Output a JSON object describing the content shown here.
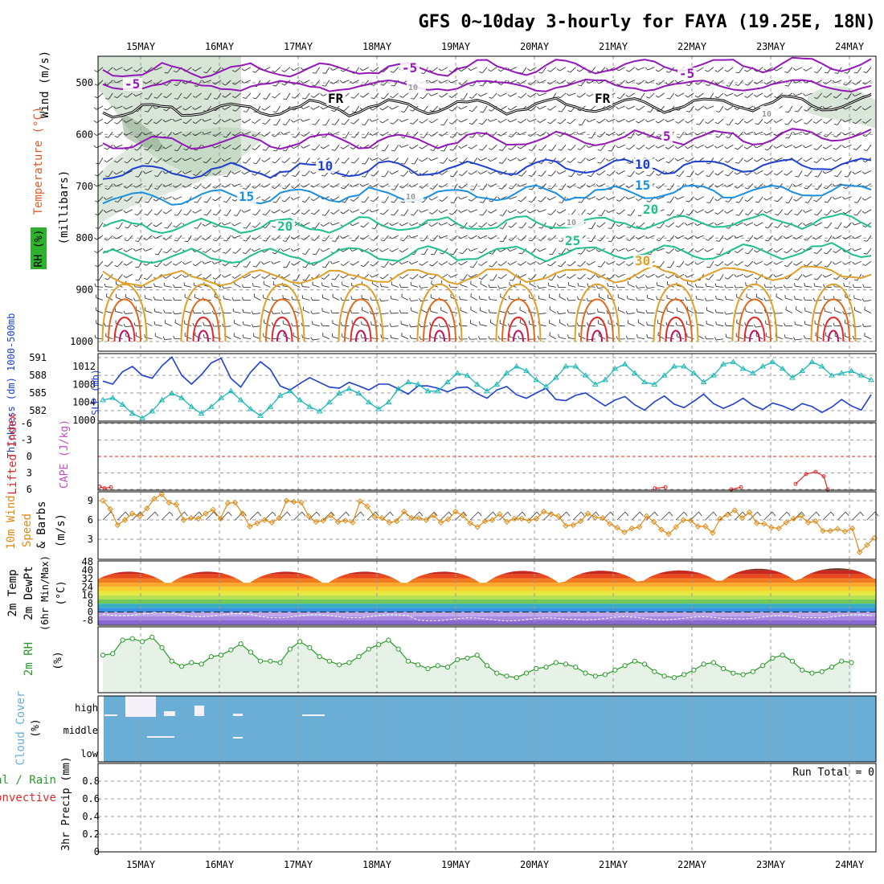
{
  "title": "GFS 0~10day 3-hourly for FAYA (19.25E, 18N)",
  "colors": {
    "purple": "#9418b8",
    "blue": "#1f3fcf",
    "lightblue": "#1a8fe0",
    "cyan": "#18b7b4",
    "teal": "#1fbf8f",
    "orange": "#e0a028",
    "darkorange": "#e06a1a",
    "red": "#e02a2a",
    "magenta": "#c0105a",
    "rhfill": "#b4cfb4",
    "windline": "#e08a14",
    "cloud": "#6aaed6",
    "rain": "#2a9a2a",
    "convective": "#e02a2a",
    "cape": "#c04fc0"
  },
  "chart_data": [
    {
      "panel": "upper-air",
      "type": "line",
      "title": "",
      "ylabel": [
        "Wind (m/s)",
        "Temperature (°C)",
        "RH (%)",
        "(millibars)"
      ],
      "x_dates": [
        "15MAY",
        "16MAY",
        "17MAY",
        "18MAY",
        "19MAY",
        "20MAY",
        "21MAY",
        "22MAY",
        "23MAY",
        "24MAY"
      ],
      "ylim": [
        1000,
        450
      ],
      "y_ticks": [
        500,
        600,
        700,
        800,
        900,
        1000
      ],
      "isotherm_labels": [
        "-5",
        "-5",
        "-5",
        "FR",
        "FR",
        "5",
        "10",
        "10",
        "15",
        "15",
        "20",
        "20",
        "25",
        "30",
        "10",
        "10",
        "10",
        "10"
      ],
      "isotherms_hPa": {
        "-5": 478,
        "FR": 553,
        "5": 617,
        "10": 672,
        "15": 722,
        "20": 780,
        "25": 838,
        "30": 880
      }
    },
    {
      "panel": "thickness-slp",
      "type": "line",
      "ylabel_left": "Thickness (dm) 1000-500mb",
      "ylabel_right": "SLP (mb)",
      "left_ticks": [
        "591",
        "588",
        "585",
        "582"
      ],
      "right_ticks": [
        "1012",
        "1008",
        "1004",
        "1000"
      ],
      "series": [
        {
          "name": "1000-500mb Thickness",
          "values": [
            587,
            586.5,
            588.6,
            589.5,
            588,
            587.5,
            589.6,
            591.1,
            588,
            586.5,
            588.1,
            590.1,
            590.9,
            587.5,
            586,
            588.5,
            590.3,
            589,
            586.2,
            585.5,
            586.6,
            587.6,
            586.8,
            586,
            585.8,
            586.8,
            586.2,
            585.5,
            586.5,
            586.5,
            585.7,
            584.8,
            586.2,
            586.2,
            585.8,
            585.2,
            585.9,
            586,
            584.9,
            584.1,
            585.5,
            586.1,
            584.7,
            584.1,
            585,
            585.8,
            583.9,
            583.7,
            584.6,
            585,
            583.9,
            582.8,
            583.8,
            584.4,
            583,
            582.1,
            583.5,
            584.5,
            583.1,
            582.5,
            583.6,
            584.8,
            583.2,
            582.4,
            583.1,
            584.1,
            582.9,
            582.2,
            583.3,
            582.8,
            582.1,
            583.2,
            582.7,
            581.7,
            582.6,
            583.9,
            582.8,
            582.1,
            584.7
          ]
        },
        {
          "name": "SLP",
          "values": [
            1004.5,
            1005,
            1003.5,
            1001.5,
            1000.5,
            1002,
            1004.5,
            1006,
            1005,
            1003,
            1001.5,
            1003,
            1005,
            1006.5,
            1004.5,
            1002.5,
            1001,
            1003,
            1005.5,
            1006.5,
            1004.5,
            1003,
            1002,
            1004,
            1006,
            1007,
            1006,
            1004,
            1002.5,
            1004,
            1007,
            1008.5,
            1008,
            1006.5,
            1006.5,
            1008.5,
            1010.5,
            1010,
            1008,
            1006.5,
            1008,
            1010.5,
            1012,
            1011,
            1009,
            1007.5,
            1009.5,
            1012,
            1012,
            1010,
            1008,
            1009,
            1011.5,
            1012.5,
            1010.5,
            1008.5,
            1008,
            1010,
            1012,
            1012,
            1010.5,
            1008.5,
            1010,
            1012.5,
            1013,
            1011.5,
            1010.5,
            1012,
            1013,
            1011.5,
            1009.5,
            1011,
            1013,
            1012,
            1010,
            1010.5,
            1011,
            1010,
            1009
          ]
        }
      ]
    },
    {
      "panel": "stability",
      "type": "line",
      "ylabel": [
        "Lifted Index",
        "CAPE (J/kg)"
      ],
      "y_ticks": [
        "-6",
        "-3",
        "0",
        "3",
        "6"
      ],
      "ylim": [
        6,
        -6
      ],
      "series": [
        {
          "name": "Lifted Index",
          "values": [
            5.5,
            3,
            2.8,
            4,
            6
          ]
        }
      ]
    },
    {
      "panel": "10m-wind",
      "type": "line",
      "ylabel": [
        "10m Wind",
        "Speed",
        "& Barbs",
        "(m/s)"
      ],
      "y_ticks": [
        "3",
        "6",
        "9"
      ],
      "ylim": [
        0,
        10.5
      ],
      "series": [
        {
          "name": "10m Wind Speed",
          "values": [
            9,
            7.7,
            5.2,
            6,
            7,
            6.6,
            7.8,
            9.3,
            10,
            8.7,
            8.4,
            6,
            6.3,
            6.2,
            7,
            7.6,
            6.2,
            8.6,
            8.7,
            7,
            5,
            5.5,
            6,
            5.6,
            6.3,
            9,
            8.8,
            8.7,
            6.6,
            5.7,
            5.9,
            6.7,
            5.7,
            5.9,
            5.6,
            8.9,
            8.1,
            6.5,
            6.3,
            5.6,
            5.8,
            7.3,
            6.3,
            6.3,
            6,
            6.7,
            5.6,
            6.1,
            7.3,
            6.7,
            5.5,
            4.9,
            5.8,
            6,
            6.9,
            5.7,
            6.2,
            6.2,
            5.9,
            6.2,
            7.3,
            6.9,
            6.6,
            5.1,
            5.2,
            5.8,
            7,
            6.4,
            6.3,
            5.4,
            4.8,
            4.1,
            4.7,
            4.9,
            6.6,
            5.7,
            4.5,
            3.8,
            4.9,
            6,
            5.9,
            5,
            5,
            4,
            6.2,
            6.8,
            7.5,
            6.3,
            7.2,
            5.5,
            5.4,
            4.8,
            4.7,
            5.6,
            6.2,
            6.6,
            5.6,
            5.8,
            4.3,
            4.3,
            4.6,
            4.2,
            4.7,
            1,
            2.1,
            3.2
          ]
        }
      ]
    },
    {
      "panel": "2m-temp",
      "type": "area",
      "ylabel": [
        "2m Temp",
        "2m DewPt",
        "(6hr Min/Max)",
        "(°C)"
      ],
      "y_ticks": [
        "48",
        "40",
        "32",
        "24",
        "16",
        "8",
        "0",
        "-8"
      ],
      "ylim": [
        -12,
        50
      ],
      "series": [
        {
          "name": "2m Temp Max",
          "values": [
            40,
            40,
            40,
            40,
            40,
            41,
            41,
            41,
            43,
            43
          ]
        },
        {
          "name": "2m Temp Min",
          "values": [
            28,
            28,
            28,
            28,
            28,
            28,
            29,
            30,
            30,
            32
          ]
        },
        {
          "name": "2m DewPt",
          "values": [
            -2,
            -3,
            -4,
            -4,
            -7,
            -7,
            -6,
            -6,
            -5,
            -4
          ]
        }
      ]
    },
    {
      "panel": "2m-rh",
      "type": "line",
      "ylabel": [
        "2m RH",
        "(%)"
      ],
      "series": [
        {
          "name": "2m RH",
          "values": [
            48,
            50,
            68,
            70,
            66,
            72,
            58,
            40,
            33,
            38,
            36,
            46,
            48,
            55,
            63,
            52,
            40,
            40,
            38,
            56,
            66,
            58,
            46,
            40,
            35,
            38,
            46,
            56,
            62,
            68,
            56,
            40,
            35,
            30,
            34,
            32,
            42,
            44,
            48,
            34,
            24,
            20,
            18,
            24,
            30,
            32,
            38,
            36,
            32,
            24,
            20,
            22,
            28,
            34,
            40,
            36,
            26,
            20,
            18,
            22,
            28,
            36,
            38,
            30,
            24,
            22,
            26,
            34,
            44,
            48,
            40,
            28,
            24,
            26,
            32,
            40,
            38
          ]
        }
      ]
    },
    {
      "panel": "cloud-cover",
      "type": "bar",
      "ylabel": [
        "Cloud Cover",
        "(%)"
      ],
      "y_ticks": [
        "high",
        "middle",
        "low"
      ]
    },
    {
      "panel": "precip",
      "type": "bar",
      "ylabel": [
        "3hr Precip (mm)",
        "Total / Rain",
        "Convective"
      ],
      "run_total_label": "Run Total = 0",
      "y_ticks": [
        "0",
        "0.2",
        "0.4",
        "0.6",
        "0.8"
      ],
      "ylim": [
        0,
        0.9
      ],
      "series": [
        {
          "name": "Total / Rain",
          "values": []
        }
      ]
    }
  ]
}
